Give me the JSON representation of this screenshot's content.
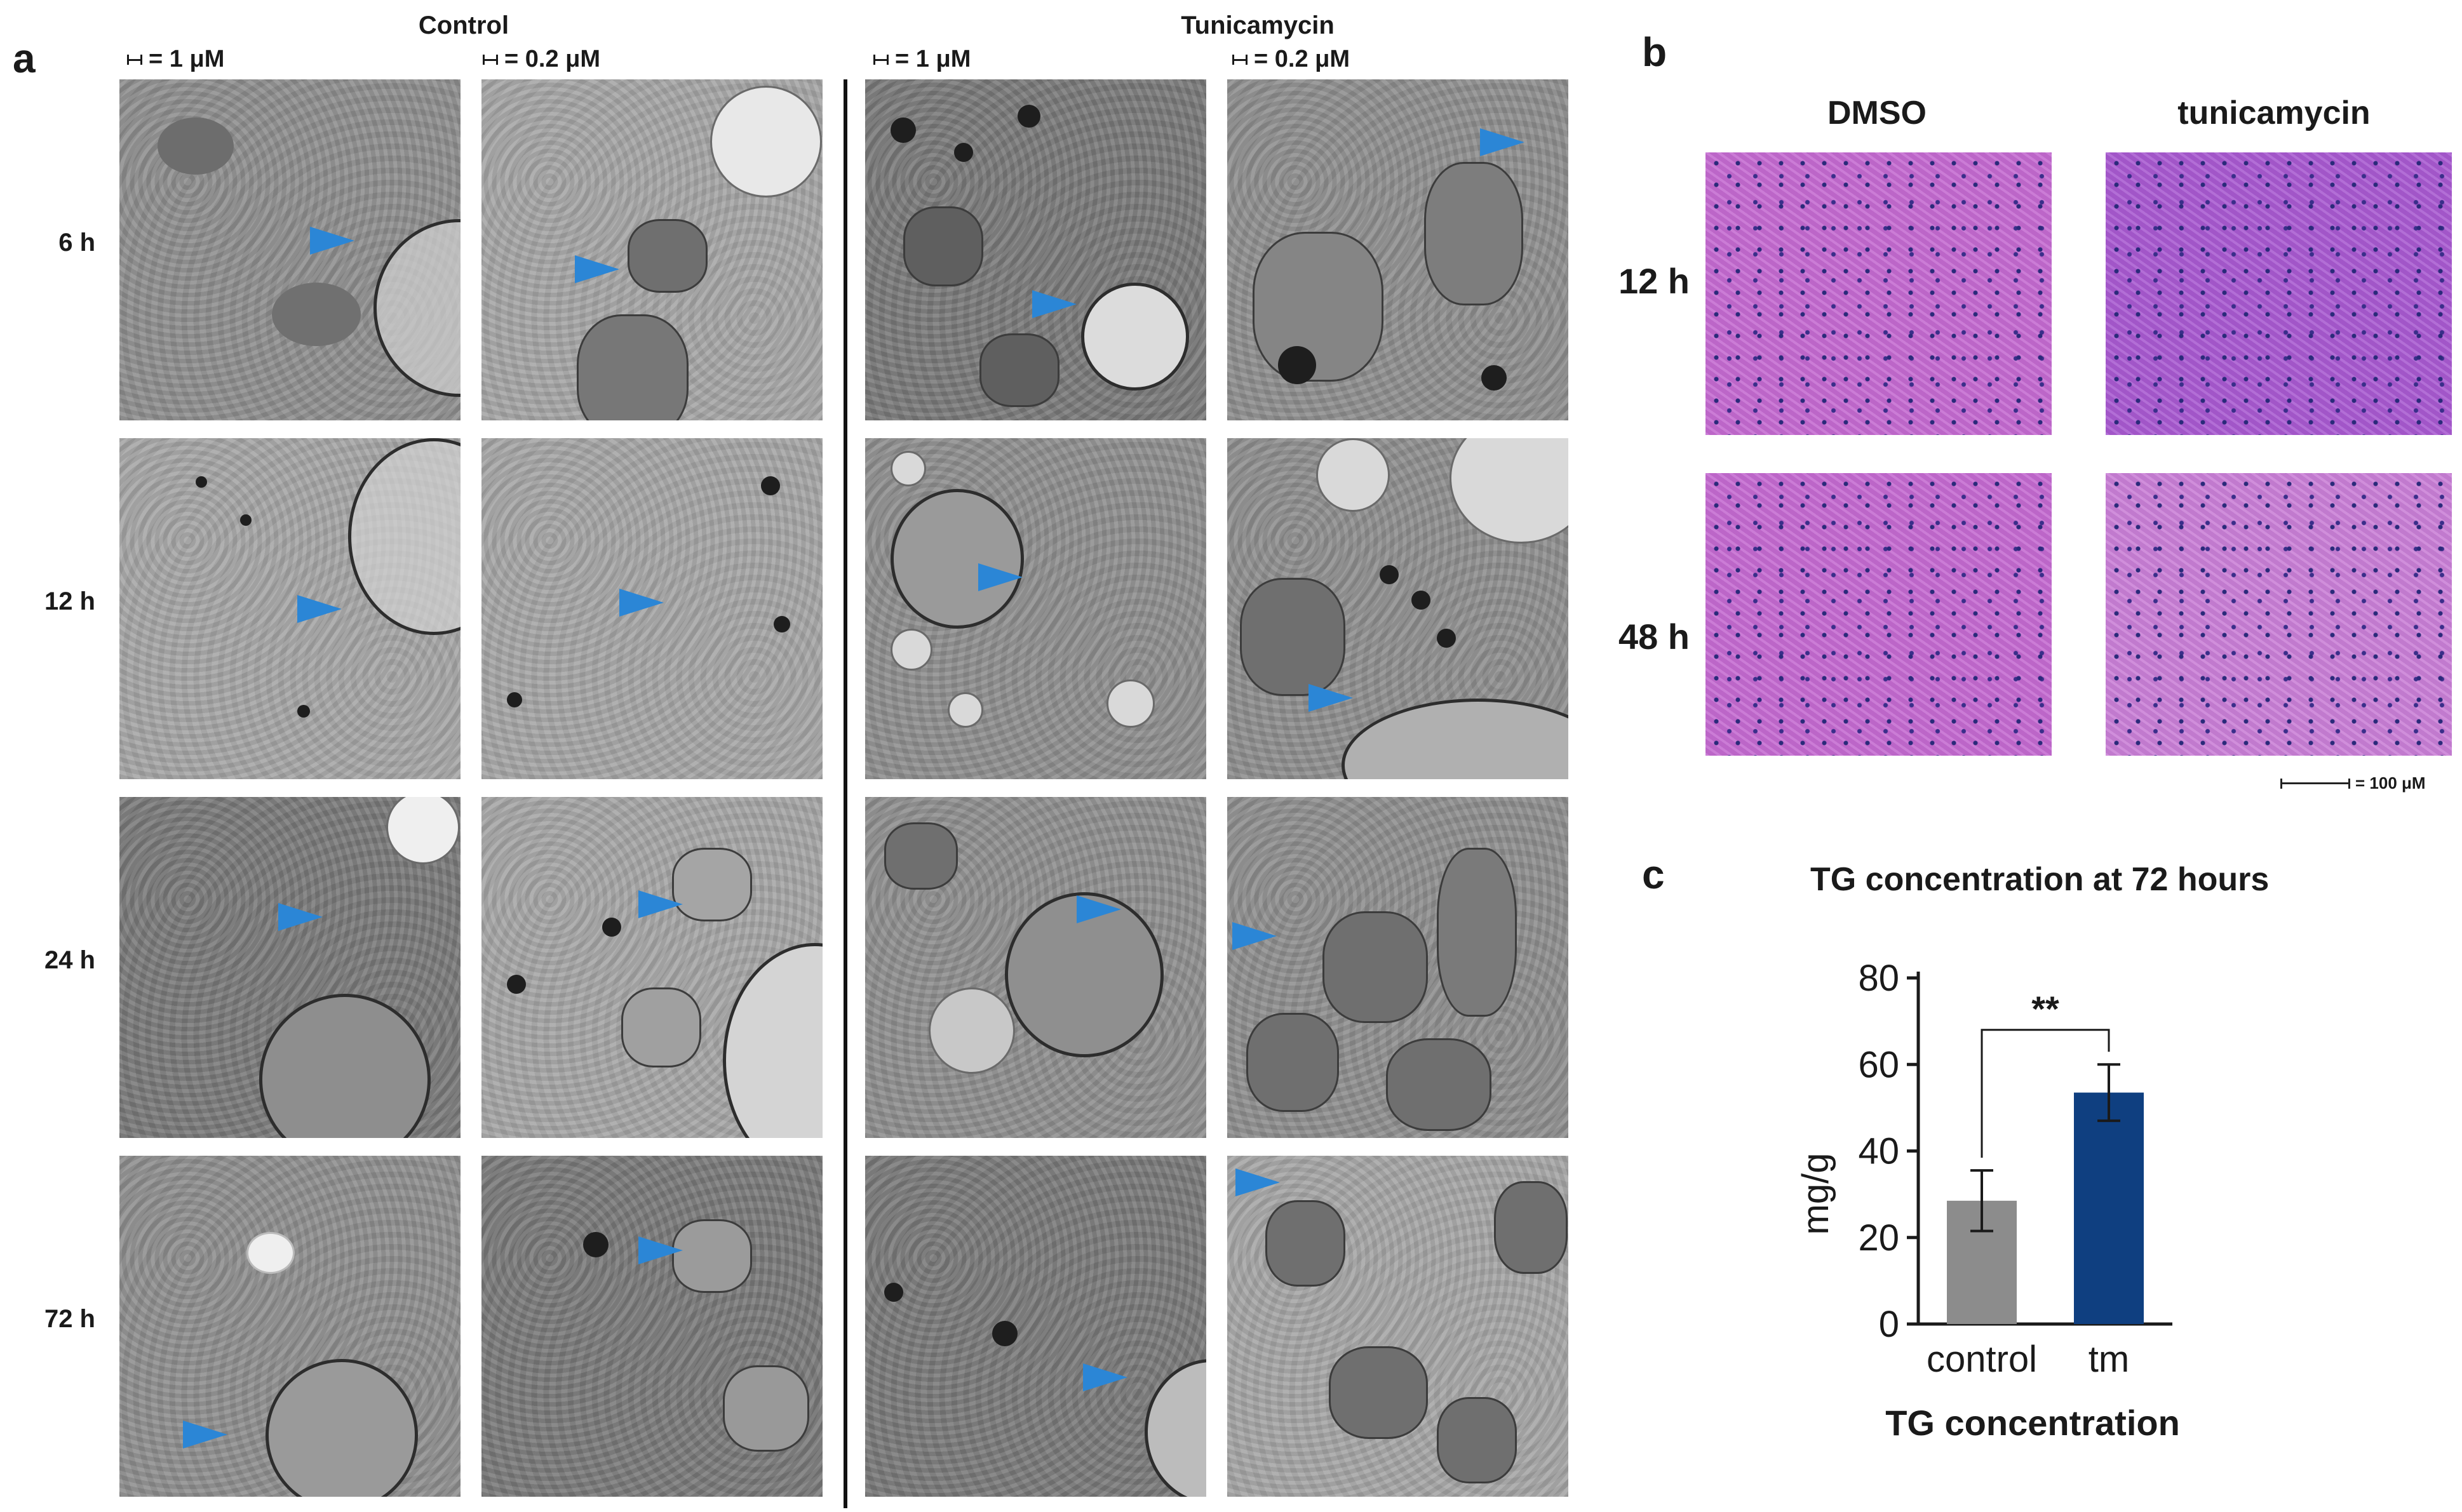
{
  "panel_a": {
    "letter": "a",
    "group_control": "Control",
    "group_tunicamycin": "Tunicamycin",
    "scale_1": "= 1 μM",
    "scale_02": "= 0.2 μM",
    "rows": [
      "6 h",
      "12 h",
      "24 h",
      "72 h"
    ],
    "arrow_color": "#2b86d6"
  },
  "panel_b": {
    "letter": "b",
    "col_dmso": "DMSO",
    "col_tm": "tunicamycin",
    "rows": [
      "12 h",
      "48 h"
    ],
    "scale": "= 100 μM"
  },
  "panel_c": {
    "letter": "c",
    "chart_data": {
      "type": "bar",
      "title": "TG concentration at 72 hours",
      "xlabel": "TG concentration",
      "ylabel": "mg/g",
      "categories": [
        "control",
        "tm"
      ],
      "values": [
        28.5,
        53.5
      ],
      "errors": [
        7,
        6.5
      ],
      "colors": [
        "#8c8c8c",
        "#0f3f80"
      ],
      "ylim": [
        0,
        80
      ],
      "yticks": [
        "0",
        "20",
        "40",
        "60",
        "80"
      ],
      "significance": "**"
    }
  }
}
